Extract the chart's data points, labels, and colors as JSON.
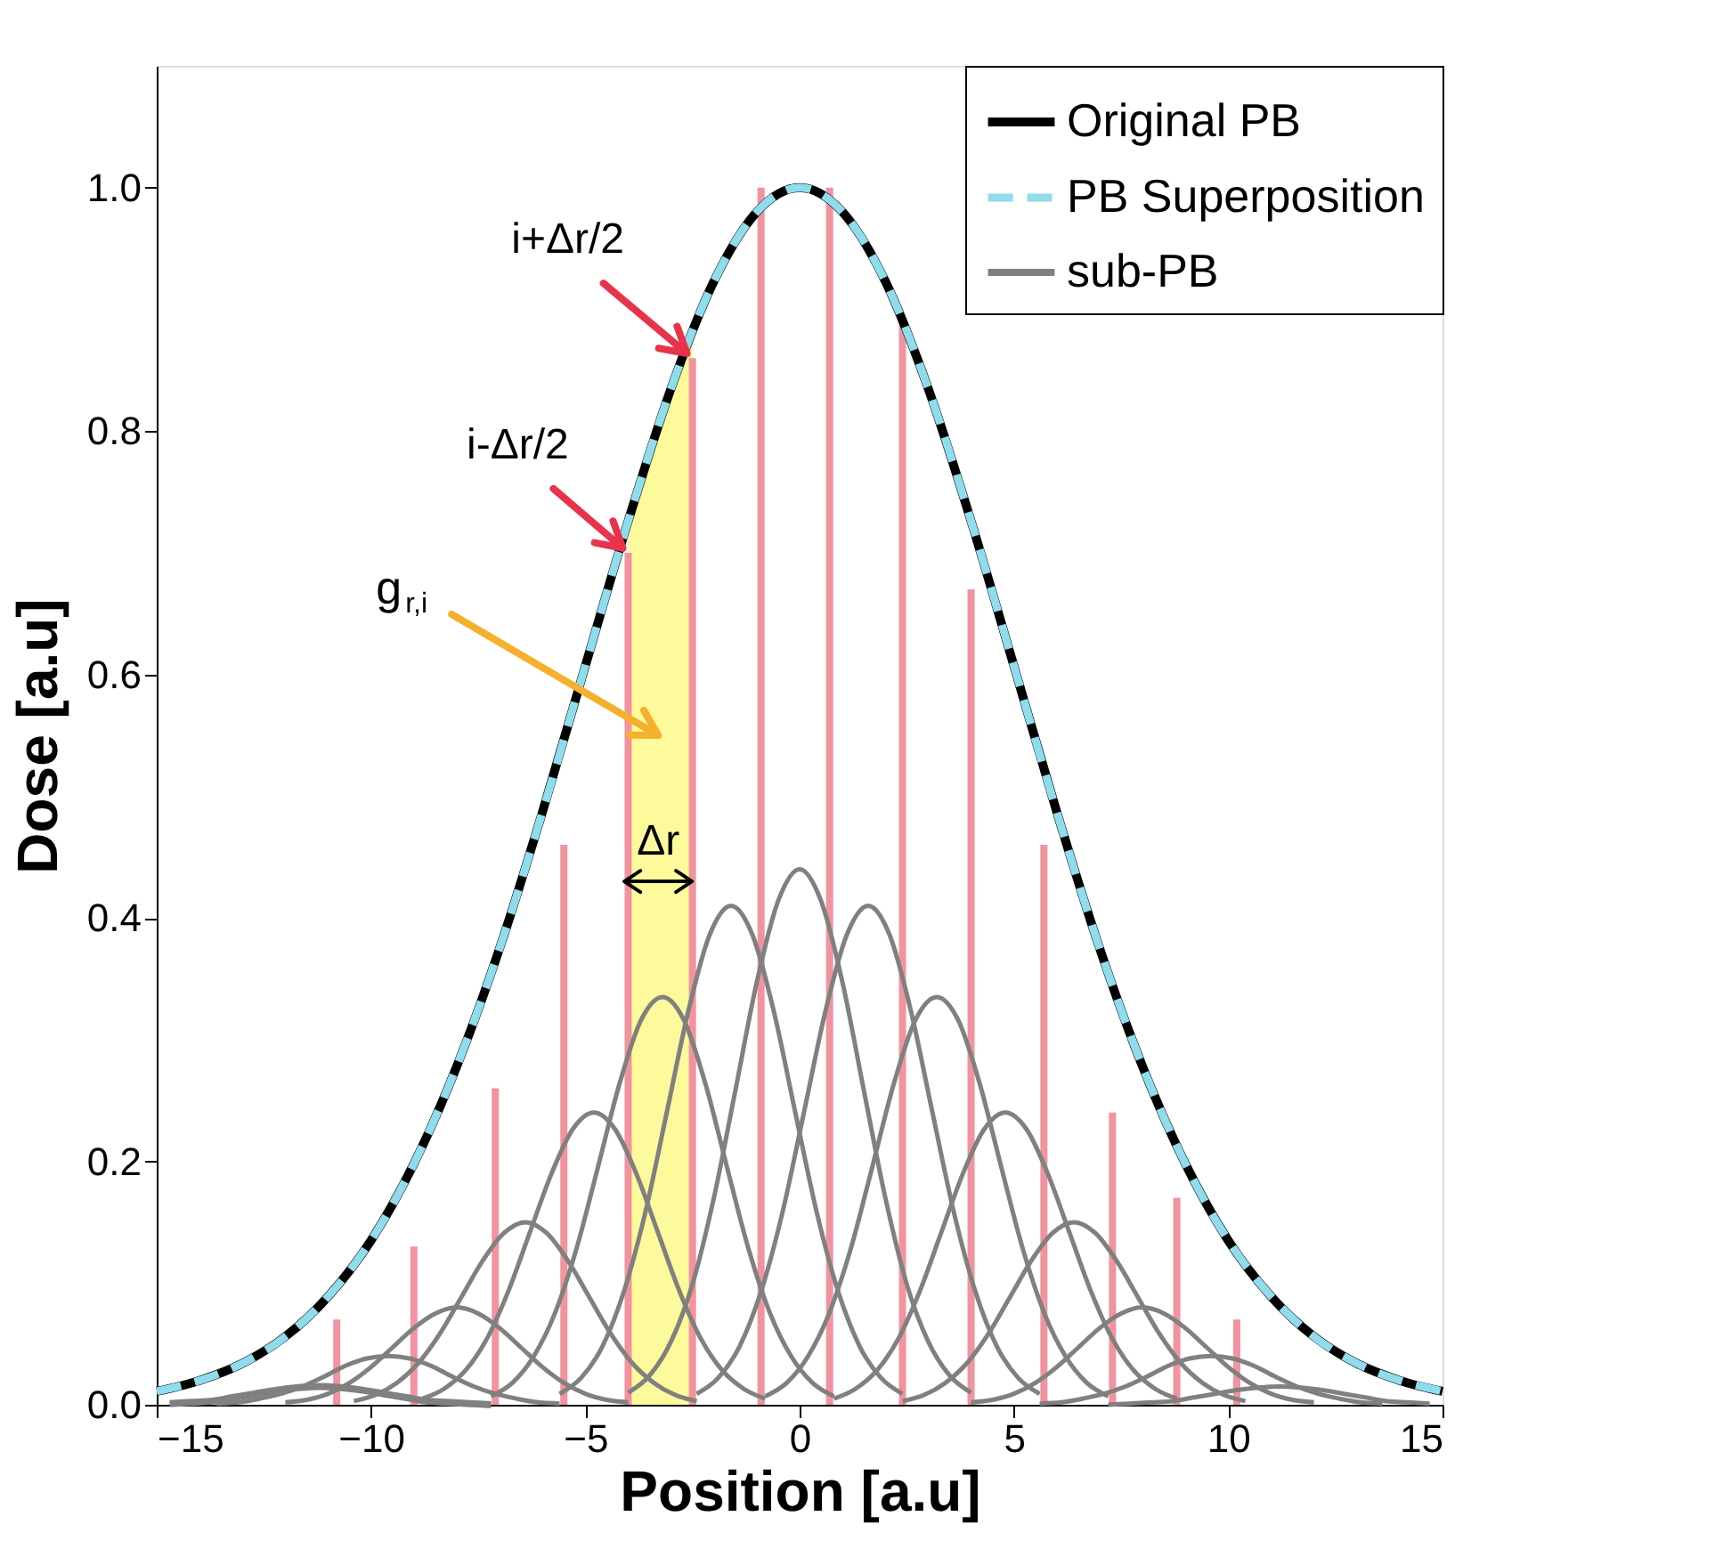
{
  "chart_data": {
    "type": "line",
    "xlabel": "Position [a.u]",
    "ylabel": "Dose [a.u]",
    "xlim": [
      -15,
      15
    ],
    "xticks": [
      -15,
      -10,
      -5,
      0,
      5,
      10,
      15
    ],
    "ylim": [
      0,
      1.1
    ],
    "yticks": [
      {
        "value": 0,
        "label": "0.0"
      },
      {
        "value": 0.2,
        "label": "0.2"
      },
      {
        "value": 0.4,
        "label": "0.4"
      },
      {
        "value": 0.6,
        "label": "0.6"
      },
      {
        "value": 0.8,
        "label": "0.8"
      },
      {
        "value": 1,
        "label": "1.0"
      }
    ],
    "grid": false,
    "legend": "top right",
    "annotations": [
      {
        "text": "i+Δr/2",
        "x": -2.5,
        "y": 0.86
      },
      {
        "text": "i-Δr/2",
        "x": -4,
        "y": 0.7
      },
      "g$_{r,i}$",
      "Δr"
    ],
    "series": [
      {
        "type": "area",
        "color": "#fbf98a",
        "x": [
          -4,
          -3.5,
          -3,
          -2.5
        ],
        "values": [
          0.726,
          0.783,
          0.835,
          0.882
        ]
      },
      {
        "type": "bar",
        "color": "#f2939f",
        "x": [
          -10.8,
          -9.0,
          -7.1,
          -5.5,
          -4.0,
          -2.5,
          -0.9,
          0.7,
          2.4,
          4.0,
          5.7,
          7.3,
          8.8,
          10.2
        ],
        "values": [
          0.07,
          0.13,
          0.26,
          0.46,
          0.7,
          0.86,
          1.0,
          1.0,
          0.89,
          0.67,
          0.46,
          0.24,
          0.17,
          0.07
        ]
      },
      {
        "name": "Original PB",
        "type": "line",
        "color": "#000000",
        "line_style": "solid",
        "x": [
          -15,
          -14,
          -13,
          -12,
          -11,
          -10,
          -9,
          -8,
          -7,
          -6,
          -5,
          -4,
          -3,
          -2,
          -1,
          0,
          1,
          2,
          3,
          4,
          5,
          6,
          7,
          8,
          9,
          10,
          11,
          12,
          13,
          14,
          15
        ],
        "values": [
          0.011,
          0.02,
          0.034,
          0.056,
          0.089,
          0.135,
          0.198,
          0.278,
          0.375,
          0.487,
          0.607,
          0.726,
          0.835,
          0.923,
          0.98,
          1,
          0.98,
          0.923,
          0.835,
          0.726,
          0.607,
          0.487,
          0.375,
          0.278,
          0.198,
          0.135,
          0.089,
          0.056,
          0.034,
          0.02,
          0.011
        ]
      },
      {
        "name": "PB Superposition",
        "type": "line",
        "color": "#8fdcec",
        "line_style": "dashed",
        "x": [
          -15,
          -14,
          -13,
          -12,
          -11,
          -10,
          -9,
          -8,
          -7,
          -6,
          -5,
          -4,
          -3,
          -2,
          -1,
          0,
          1,
          2,
          3,
          4,
          5,
          6,
          7,
          8,
          9,
          10,
          11,
          12,
          13,
          14,
          15
        ],
        "values": [
          0.011,
          0.02,
          0.034,
          0.056,
          0.089,
          0.135,
          0.198,
          0.278,
          0.375,
          0.487,
          0.607,
          0.726,
          0.835,
          0.923,
          0.98,
          1,
          0.98,
          0.923,
          0.835,
          0.726,
          0.607,
          0.487,
          0.375,
          0.278,
          0.198,
          0.135,
          0.089,
          0.056,
          0.034,
          0.02,
          0.011
        ]
      },
      {
        "name": "sub-PB",
        "type": "line",
        "color": "#808080",
        "line_style": "solid",
        "x": [
          -14.7,
          -14.2,
          -13.7,
          -13.2,
          -12.7,
          -12.2,
          -11.7,
          -11.2,
          -10.7,
          -10.2,
          -9.7,
          -9.2,
          -8.7,
          -8.2,
          -7.7,
          -7.2
        ],
        "values": [
          0.001,
          0.002,
          0.003,
          0.006,
          0.009,
          0.012,
          0.014,
          0.015,
          0.014,
          0.012,
          0.009,
          0.006,
          0.003,
          0.002,
          0.001,
          0
        ]
      },
      {
        "type": "line",
        "color": "#808080",
        "line_style": "solid",
        "x": [
          -13.6,
          -13.1,
          -12.6,
          -12.1,
          -11.6,
          -11.1,
          -10.6,
          -10.1,
          -9.6,
          -9.1,
          -8.6,
          -8.1,
          -7.6,
          -7.1,
          -6.6,
          -6.1,
          -5.6
        ],
        "values": [
          0.001,
          0.002,
          0.005,
          0.009,
          0.015,
          0.023,
          0.032,
          0.038,
          0.04,
          0.038,
          0.032,
          0.023,
          0.015,
          0.009,
          0.005,
          0.002,
          0.001
        ]
      },
      {
        "type": "line",
        "color": "#808080",
        "line_style": "solid",
        "x": [
          -12,
          -11.5,
          -11,
          -10.5,
          -10,
          -9.5,
          -9,
          -8.5,
          -8,
          -7.5,
          -7,
          -6.5,
          -6,
          -5.5,
          -5,
          -4.5,
          -4
        ],
        "values": [
          0.002,
          0.004,
          0.009,
          0.018,
          0.031,
          0.047,
          0.063,
          0.075,
          0.08,
          0.075,
          0.063,
          0.047,
          0.031,
          0.018,
          0.009,
          0.004,
          0.002
        ]
      },
      {
        "type": "line",
        "color": "#808080",
        "line_style": "solid",
        "x": [
          -10.4,
          -9.9,
          -9.4,
          -8.9,
          -8.4,
          -7.9,
          -7.4,
          -6.9,
          -6.4,
          -5.9,
          -5.4,
          -4.9,
          -4.4,
          -3.9,
          -3.4,
          -2.9,
          -2.4
        ],
        "values": [
          0.003,
          0.008,
          0.018,
          0.034,
          0.058,
          0.088,
          0.118,
          0.141,
          0.15,
          0.141,
          0.118,
          0.088,
          0.058,
          0.034,
          0.018,
          0.008,
          0.003
        ]
      },
      {
        "type": "line",
        "color": "#808080",
        "line_style": "solid",
        "x": [
          -8.8,
          -8.3,
          -7.8,
          -7.3,
          -6.8,
          -6.3,
          -5.8,
          -5.3,
          -4.8,
          -4.3,
          -3.8,
          -3.3,
          -2.8,
          -2.3,
          -1.8,
          -1.3,
          -0.8
        ],
        "values": [
          0.005,
          0.013,
          0.028,
          0.054,
          0.093,
          0.141,
          0.189,
          0.226,
          0.24,
          0.226,
          0.189,
          0.141,
          0.093,
          0.054,
          0.028,
          0.013,
          0.005
        ]
      },
      {
        "type": "line",
        "color": "#808080",
        "line_style": "solid",
        "x": [
          -7.2,
          -6.7,
          -6.2,
          -5.7,
          -5.2,
          -4.7,
          -4.2,
          -3.7,
          -3.2,
          -2.7,
          -2.2,
          -1.7,
          -1.2,
          -0.7,
          -0.2,
          0.3,
          0.8
        ],
        "values": [
          0.007,
          0.018,
          0.04,
          0.076,
          0.129,
          0.196,
          0.264,
          0.316,
          0.335,
          0.316,
          0.264,
          0.196,
          0.129,
          0.076,
          0.04,
          0.018,
          0.007
        ]
      },
      {
        "type": "line",
        "color": "#808080",
        "line_style": "solid",
        "x": [
          -5.6,
          -5.1,
          -4.6,
          -4.1,
          -3.6,
          -3.1,
          -2.6,
          -2.1,
          -1.6,
          -1.1,
          -0.6,
          -0.1,
          0.4,
          0.9,
          1.4,
          1.9,
          2.4
        ],
        "values": [
          0.009,
          0.022,
          0.048,
          0.093,
          0.158,
          0.24,
          0.323,
          0.386,
          0.41,
          0.386,
          0.323,
          0.24,
          0.158,
          0.093,
          0.048,
          0.022,
          0.009
        ]
      },
      {
        "type": "line",
        "color": "#808080",
        "line_style": "solid",
        "x": [
          -4,
          -3.5,
          -3,
          -2.5,
          -2,
          -1.5,
          -1,
          -0.5,
          0,
          0.5,
          1,
          1.5,
          2,
          2.5,
          3,
          3.5,
          4
        ],
        "values": [
          0.01,
          0.024,
          0.052,
          0.099,
          0.17,
          0.258,
          0.347,
          0.414,
          0.44,
          0.414,
          0.347,
          0.258,
          0.17,
          0.099,
          0.052,
          0.024,
          0.01
        ]
      },
      {
        "type": "line",
        "color": "#808080",
        "line_style": "solid",
        "x": [
          -2.4,
          -1.9,
          -1.4,
          -0.9,
          -0.4,
          0.1,
          0.6,
          1.1,
          1.6,
          2.1,
          2.6,
          3.1,
          3.6,
          4.1,
          4.6,
          5.1,
          5.6
        ],
        "values": [
          0.009,
          0.022,
          0.048,
          0.093,
          0.158,
          0.24,
          0.323,
          0.386,
          0.41,
          0.386,
          0.323,
          0.24,
          0.158,
          0.093,
          0.048,
          0.022,
          0.009
        ]
      },
      {
        "type": "line",
        "color": "#808080",
        "line_style": "solid",
        "x": [
          -0.8,
          -0.3,
          0.2,
          0.7,
          1.2,
          1.7,
          2.2,
          2.7,
          3.2,
          3.7,
          4.2,
          4.7,
          5.2,
          5.7,
          6.2,
          6.7,
          7.2
        ],
        "values": [
          0.007,
          0.018,
          0.04,
          0.076,
          0.129,
          0.196,
          0.264,
          0.316,
          0.335,
          0.316,
          0.264,
          0.196,
          0.129,
          0.076,
          0.04,
          0.018,
          0.007
        ]
      },
      {
        "type": "line",
        "color": "#808080",
        "line_style": "solid",
        "x": [
          0.8,
          1.3,
          1.8,
          2.3,
          2.8,
          3.3,
          3.8,
          4.3,
          4.8,
          5.3,
          5.8,
          6.3,
          6.8,
          7.3,
          7.8,
          8.3,
          8.8
        ],
        "values": [
          0.005,
          0.013,
          0.028,
          0.054,
          0.093,
          0.141,
          0.189,
          0.226,
          0.24,
          0.226,
          0.189,
          0.141,
          0.093,
          0.054,
          0.028,
          0.013,
          0.005
        ]
      },
      {
        "type": "line",
        "color": "#808080",
        "line_style": "solid",
        "x": [
          2.4,
          2.9,
          3.4,
          3.9,
          4.4,
          4.9,
          5.4,
          5.9,
          6.4,
          6.9,
          7.4,
          7.9,
          8.4,
          8.9,
          9.4,
          9.9,
          10.4
        ],
        "values": [
          0.003,
          0.008,
          0.018,
          0.034,
          0.058,
          0.088,
          0.118,
          0.141,
          0.15,
          0.141,
          0.118,
          0.088,
          0.058,
          0.034,
          0.018,
          0.008,
          0.003
        ]
      },
      {
        "type": "line",
        "color": "#808080",
        "line_style": "solid",
        "x": [
          4,
          4.5,
          5,
          5.5,
          6,
          6.5,
          7,
          7.5,
          8,
          8.5,
          9,
          9.5,
          10,
          10.5,
          11,
          11.5,
          12
        ],
        "values": [
          0.002,
          0.004,
          0.009,
          0.018,
          0.031,
          0.047,
          0.063,
          0.075,
          0.08,
          0.075,
          0.063,
          0.047,
          0.031,
          0.018,
          0.009,
          0.004,
          0.002
        ]
      },
      {
        "type": "line",
        "color": "#808080",
        "line_style": "solid",
        "x": [
          5.6,
          6.1,
          6.6,
          7.1,
          7.6,
          8.1,
          8.6,
          9.1,
          9.6,
          10.1,
          10.6,
          11.1,
          11.6,
          12.1,
          12.6,
          13.1,
          13.6
        ],
        "values": [
          0.001,
          0.002,
          0.005,
          0.009,
          0.015,
          0.023,
          0.032,
          0.038,
          0.04,
          0.038,
          0.032,
          0.023,
          0.015,
          0.009,
          0.005,
          0.002,
          0.001
        ]
      },
      {
        "type": "line",
        "color": "#808080",
        "line_style": "solid",
        "x": [
          7.2,
          7.7,
          8.2,
          8.7,
          9.2,
          9.7,
          10.2,
          10.7,
          11.2,
          11.7,
          12.2,
          12.7,
          13.2,
          13.7,
          14.2,
          14.7
        ],
        "values": [
          0,
          0.001,
          0.002,
          0.003,
          0.006,
          0.009,
          0.012,
          0.014,
          0.015,
          0.014,
          0.012,
          0.009,
          0.006,
          0.003,
          0.002,
          0.001
        ]
      }
    ]
  }
}
